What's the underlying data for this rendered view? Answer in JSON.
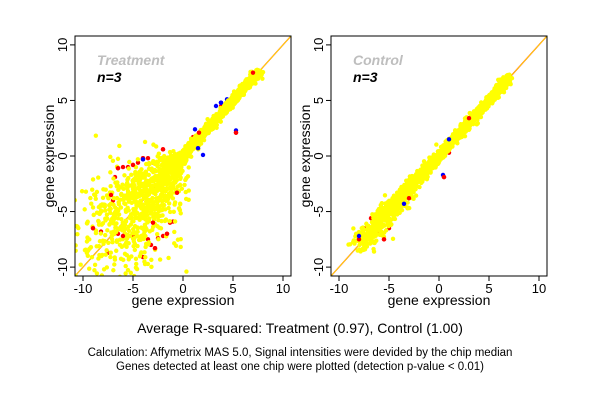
{
  "chart_data": [
    {
      "type": "scatter",
      "title": "Treatment",
      "subtitle": "n=3",
      "xlabel": "gene expression",
      "ylabel": "gene expression",
      "xlim": [
        -10.8,
        10.8
      ],
      "ylim": [
        -10.8,
        10.8
      ],
      "xticks": [
        "-10",
        "-5",
        "0",
        "5",
        "10"
      ],
      "yticks": [
        "-10",
        "-5",
        "0",
        "5",
        "10"
      ],
      "tick_values": [
        -10,
        -5,
        0,
        5,
        10
      ],
      "reference_line": "y = x",
      "grid": false,
      "colors": {
        "main": "#ffff00",
        "red": "#ff0000",
        "blue": "#0000ff",
        "title": "#bebebe"
      },
      "main_cloud": {
        "t_range": [
          -8,
          7.6
        ],
        "n": 2200,
        "base_spread": 0.18,
        "spread_growth_below_zero": 0.38,
        "seed": 7
      },
      "series": [
        {
          "name": "red",
          "points": [
            [
              -9,
              -6.5
            ],
            [
              -8.2,
              -6.8
            ],
            [
              -7.5,
              -8.7
            ],
            [
              -7.2,
              -3.5
            ],
            [
              -7,
              -4
            ],
            [
              -6.8,
              -1.9
            ],
            [
              -6.5,
              -1.1
            ],
            [
              -6,
              -1
            ],
            [
              -5.5,
              -1
            ],
            [
              -5,
              -0.8
            ],
            [
              -4.5,
              -0.6
            ],
            [
              -4,
              -9.1
            ],
            [
              -4,
              -0.2
            ],
            [
              -3.5,
              -0.2
            ],
            [
              -3,
              -0.6
            ],
            [
              -2,
              0.6
            ],
            [
              -3.5,
              -7.5
            ],
            [
              -3.2,
              -8
            ],
            [
              -2.8,
              -8.3
            ],
            [
              -2.5,
              -7.4
            ],
            [
              -2,
              -7.2
            ],
            [
              -1.6,
              -7
            ],
            [
              -1.3,
              -6
            ],
            [
              -1,
              -5.9
            ],
            [
              -0.6,
              -3.3
            ],
            [
              -1,
              -2.8
            ],
            [
              -5,
              -7.2
            ],
            [
              -6,
              -7.2
            ],
            [
              -6.5,
              -7
            ],
            [
              -7,
              -6
            ],
            [
              -3,
              -6
            ],
            [
              -0.5,
              -1.2
            ],
            [
              1,
              1.7
            ],
            [
              1.6,
              2.1
            ],
            [
              2.2,
              2.5
            ],
            [
              3.8,
              4.5
            ],
            [
              5.3,
              2.1
            ],
            [
              5,
              5.3
            ],
            [
              6.5,
              6.6
            ],
            [
              7,
              7.5
            ]
          ]
        },
        {
          "name": "blue",
          "points": [
            [
              -4,
              -0.3
            ],
            [
              1.2,
              2.4
            ],
            [
              3.3,
              4.5
            ],
            [
              3.8,
              4.8
            ],
            [
              4.4,
              5.1
            ],
            [
              5.3,
              2.3
            ],
            [
              1.5,
              0.7
            ],
            [
              2,
              0.1
            ]
          ]
        }
      ]
    },
    {
      "type": "scatter",
      "title": "Control",
      "subtitle": "n=3",
      "xlabel": "gene expression",
      "ylabel": "gene expression",
      "xlim": [
        -10.8,
        10.8
      ],
      "ylim": [
        -10.8,
        10.8
      ],
      "xticks": [
        "-10",
        "-5",
        "0",
        "5",
        "10"
      ],
      "yticks": [
        "-10",
        "-5",
        "0",
        "5",
        "10"
      ],
      "tick_values": [
        -10,
        -5,
        0,
        5,
        10
      ],
      "reference_line": "y = x",
      "grid": false,
      "colors": {
        "main": "#ffff00",
        "red": "#ff0000",
        "blue": "#0000ff",
        "title": "#bebebe"
      },
      "main_cloud": {
        "t_range": [
          -8,
          7
        ],
        "n": 1500,
        "base_spread": 0.2,
        "spread_growth_below_zero": 0.05,
        "seed": 11
      },
      "series": [
        {
          "name": "red",
          "points": [
            [
              -8,
              -7.5
            ],
            [
              -7.5,
              -6.5
            ],
            [
              -6.2,
              -6.8
            ],
            [
              -5.5,
              -7.5
            ],
            [
              -5,
              -6.5
            ],
            [
              -4.5,
              -4
            ],
            [
              -3,
              -3.8
            ],
            [
              -2.5,
              -2.3
            ],
            [
              -1.5,
              -1.8
            ],
            [
              0.5,
              -1.9
            ],
            [
              1,
              0.3
            ],
            [
              2.3,
              1.8
            ],
            [
              3,
              3.4
            ],
            [
              -6.8,
              -5.6
            ]
          ]
        },
        {
          "name": "blue",
          "points": [
            [
              -8,
              -7.2
            ],
            [
              -6.5,
              -5.3
            ],
            [
              -5.2,
              -4.4
            ],
            [
              -3.5,
              -4.3
            ],
            [
              -2,
              -2.1
            ],
            [
              0.4,
              -1.7
            ],
            [
              1,
              1.5
            ],
            [
              3.5,
              3.2
            ],
            [
              6,
              6.1
            ]
          ]
        }
      ]
    }
  ],
  "footer": {
    "summary": "Average R-squared: Treatment (0.97), Control (1.00)",
    "note_line1": "Calculation: Affymetrix MAS 5.0, Signal intensities were devided by the chip median",
    "note_line2": "Genes detected at least one chip were plotted (detection p-value < 0.01)"
  }
}
